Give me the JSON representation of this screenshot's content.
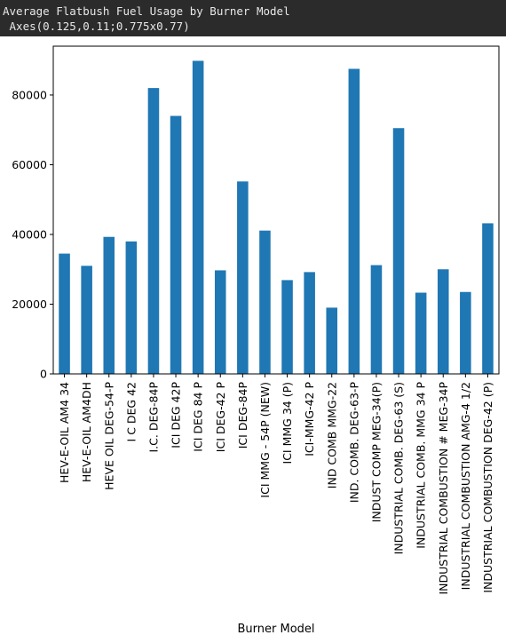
{
  "window": {
    "title": "Average Flatbush Fuel Usage by Burner Model",
    "axes_info": " Axes(0.125,0.11;0.775x0.77)"
  },
  "chart_data": {
    "type": "bar",
    "title": "",
    "xlabel": "Burner Model",
    "ylabel": "",
    "ylim": [
      0,
      94000
    ],
    "yticks": [
      0,
      20000,
      40000,
      60000,
      80000
    ],
    "grid": false,
    "bar_color": "#1f77b4",
    "categories": [
      "HEV-E-OIL AM4 34",
      "HEV-E-OIL AM4DH",
      "HEVE OIL DEG-54-P",
      "I C DEG 42",
      "I.C. DEG-84P",
      "ICI DEG 42P",
      "ICI DEG 84 P",
      "ICI DEG-42 P",
      "ICI DEG-84P",
      "ICI MMG - 54P (NEW)",
      "ICI MMG 34 (P)",
      "ICI-MMG-42 P",
      "IND COMB MMG-22",
      "IND. COMB. DEG-63-P",
      "INDUST COMP MEG-34(P)",
      "INDUSTRIAL COMB. DEG-63 (S)",
      "INDUSTRIAL COMB. MMG 34 P",
      "INDUSTRIAL COMBUSTION # MEG-34P",
      "INDUSTRIAL COMBUSTION AMG-4 1/2",
      "INDUSTRIAL COMBUSTION DEG-42 (P)"
    ],
    "values": [
      34500,
      31000,
      39300,
      38000,
      82000,
      74000,
      89800,
      29700,
      55200,
      41100,
      26900,
      29200,
      19000,
      87500,
      31200,
      70500,
      23300,
      30000,
      23500,
      43200
    ]
  }
}
